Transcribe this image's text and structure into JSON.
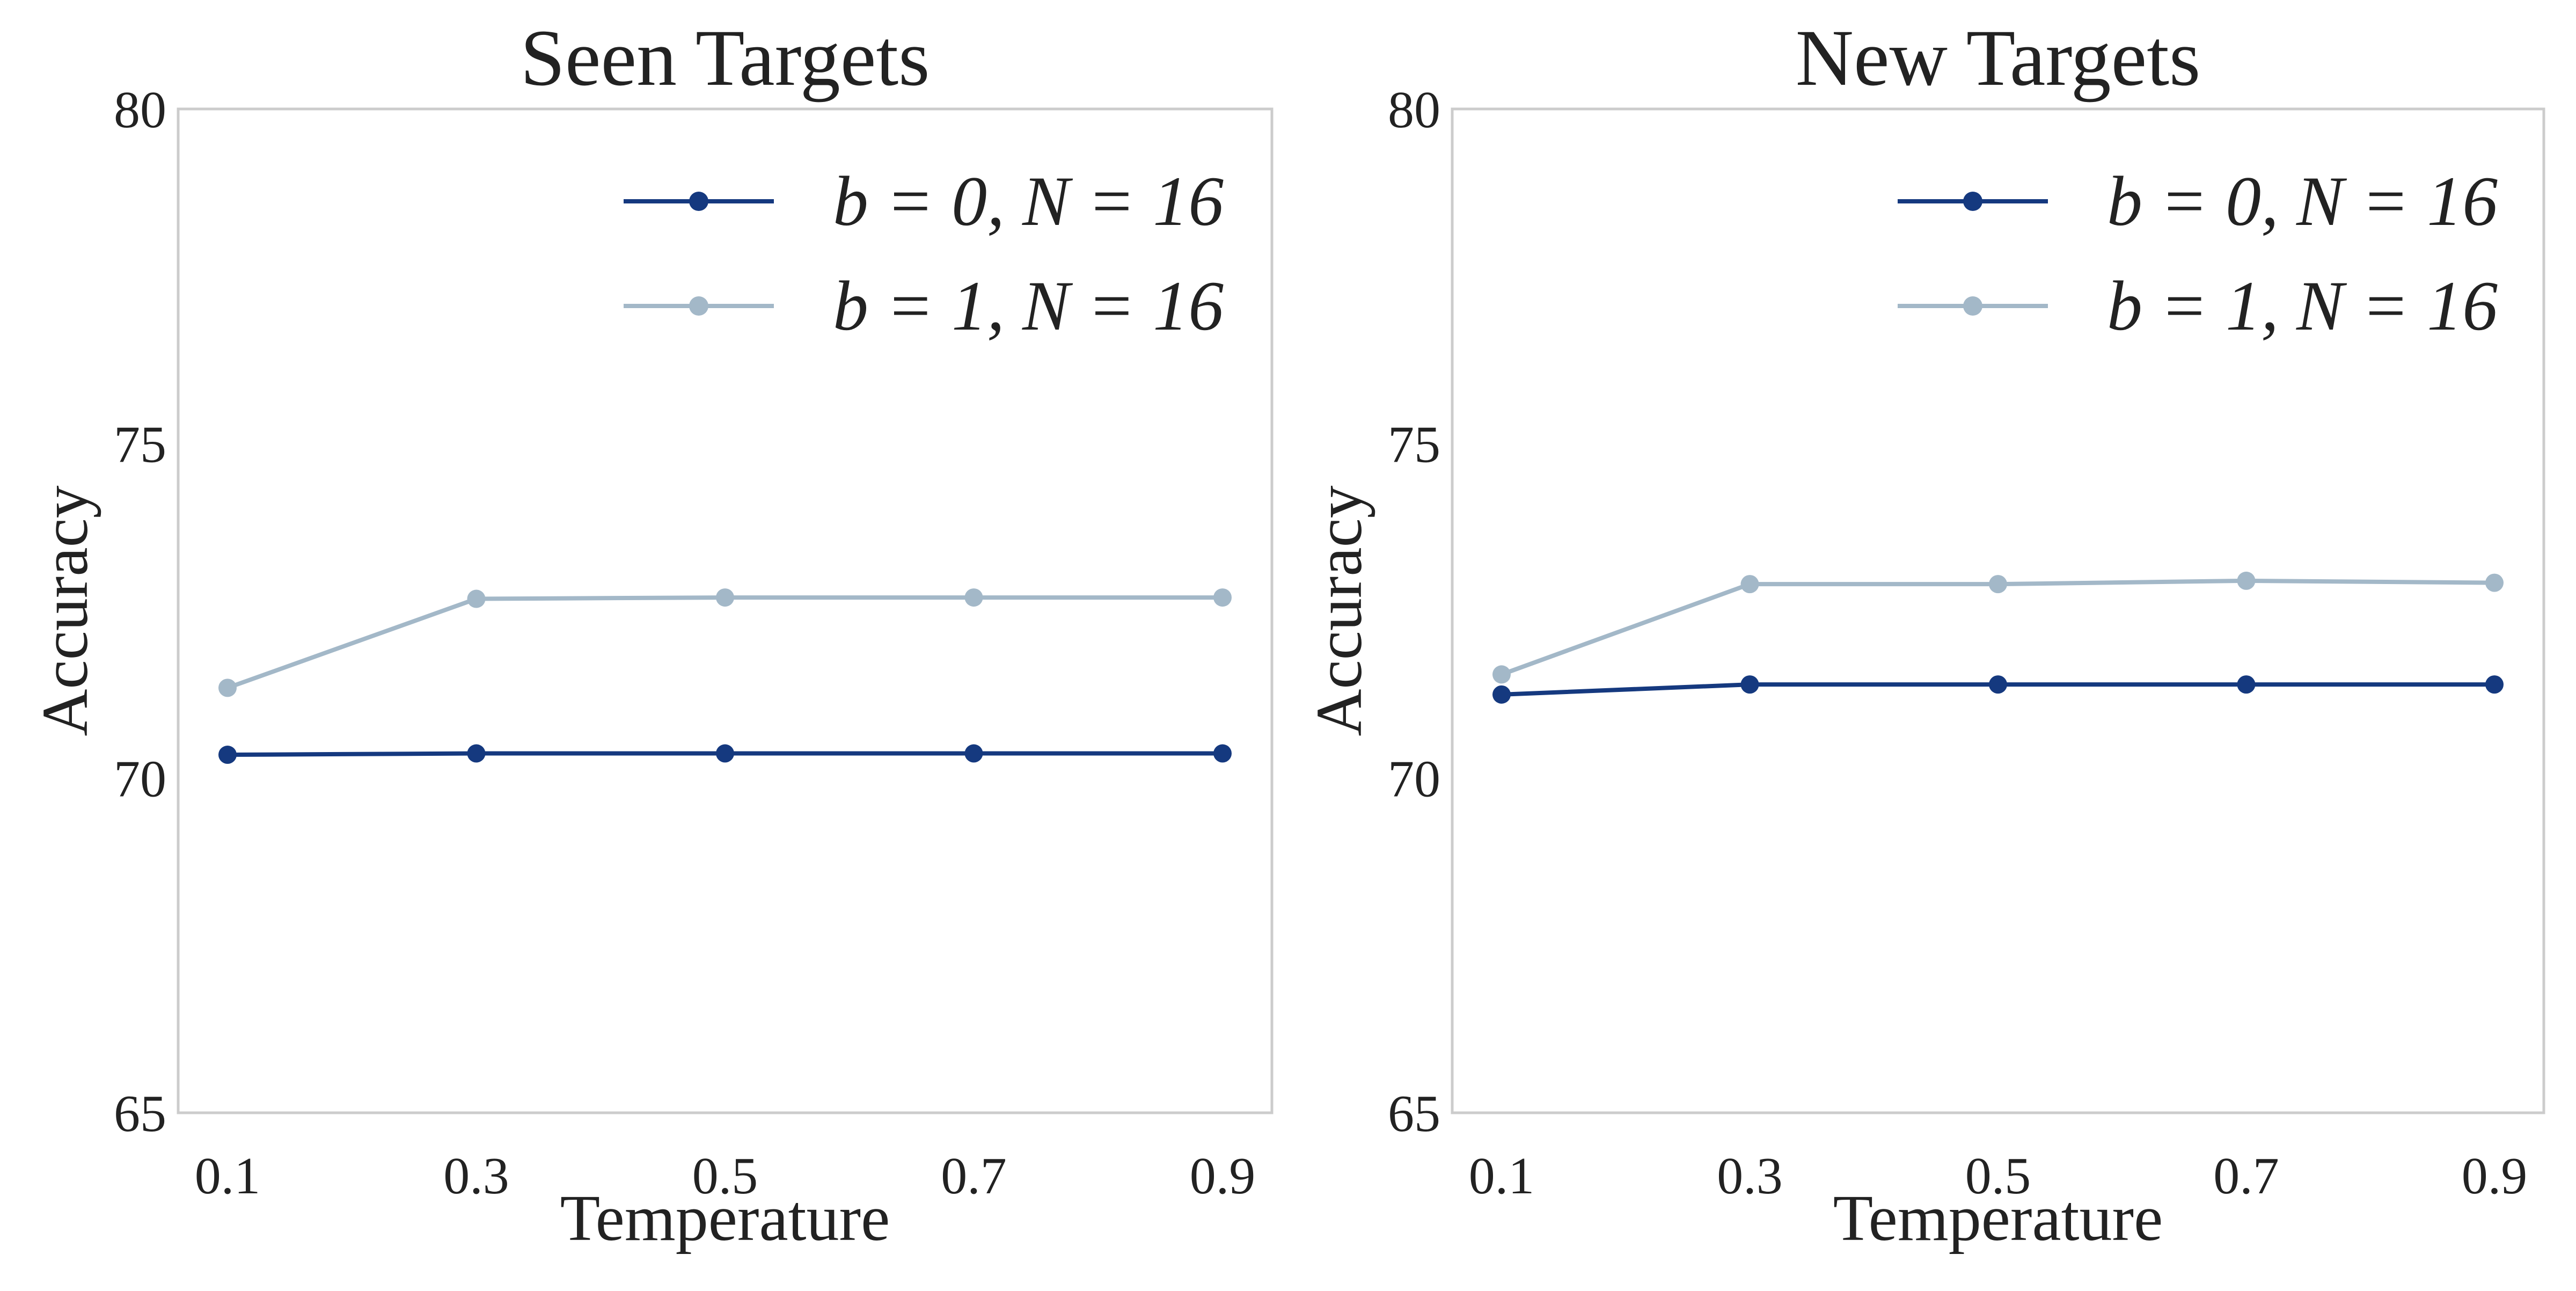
{
  "chart_data": [
    {
      "type": "line",
      "title": "Seen Targets",
      "xlabel": "Temperature",
      "ylabel": "Accuracy",
      "x": [
        0.1,
        0.3,
        0.5,
        0.7,
        0.9
      ],
      "xtick_labels": [
        "0.1",
        "0.3",
        "0.5",
        "0.7",
        "0.9"
      ],
      "ylim": [
        65,
        80
      ],
      "yticks": [
        65,
        70,
        75,
        80
      ],
      "ytick_labels": [
        "65",
        "70",
        "75",
        "80"
      ],
      "grid": false,
      "legend_position": "top-right",
      "series": [
        {
          "name": "b = 0, N = 16",
          "color": "#15397f",
          "values": [
            70.35,
            70.37,
            70.37,
            70.37,
            70.37
          ]
        },
        {
          "name": "b = 1, N = 16",
          "color": "#a3b8c8",
          "values": [
            71.35,
            72.68,
            72.7,
            72.7,
            72.7
          ]
        }
      ]
    },
    {
      "type": "line",
      "title": "New Targets",
      "xlabel": "Temperature",
      "ylabel": "Accuracy",
      "x": [
        0.1,
        0.3,
        0.5,
        0.7,
        0.9
      ],
      "xtick_labels": [
        "0.1",
        "0.3",
        "0.5",
        "0.7",
        "0.9"
      ],
      "ylim": [
        65,
        80
      ],
      "yticks": [
        65,
        70,
        75,
        80
      ],
      "ytick_labels": [
        "65",
        "70",
        "75",
        "80"
      ],
      "grid": false,
      "legend_position": "top-right",
      "series": [
        {
          "name": "b = 0, N = 16",
          "color": "#15397f",
          "values": [
            71.25,
            71.4,
            71.4,
            71.4,
            71.4
          ]
        },
        {
          "name": "b = 1, N = 16",
          "color": "#a3b8c8",
          "values": [
            71.55,
            72.9,
            72.9,
            72.95,
            72.92
          ]
        }
      ]
    }
  ]
}
